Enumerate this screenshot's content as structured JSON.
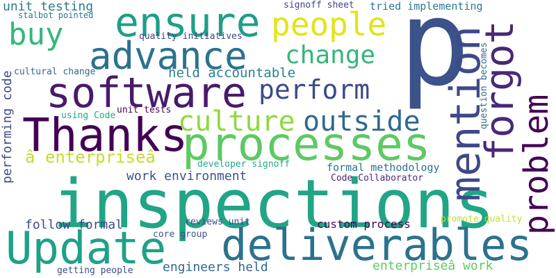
{
  "words": {
    "p": {
      "text": "p",
      "color": "#3b528b"
    },
    "inspections": {
      "text": "inspections",
      "color": "#21a585"
    },
    "processes": {
      "text": "processes",
      "color": "#5ec962"
    },
    "deliverables": {
      "text": "deliverables",
      "color": "#2c728e"
    },
    "update": {
      "text": "Update",
      "color": "#1fa187"
    },
    "thanks": {
      "text": "Thanks",
      "color": "#440154"
    },
    "software": {
      "text": "software",
      "color": "#481a6c"
    },
    "advance": {
      "text": "advance",
      "color": "#2c728e"
    },
    "ensure": {
      "text": "ensure",
      "color": "#1f9e89"
    },
    "mention": {
      "text": "mention",
      "color": "#3e4989"
    },
    "forgot": {
      "text": "forgot",
      "color": "#482878"
    },
    "problem": {
      "text": "problem",
      "color": "#440154"
    },
    "people": {
      "text": "people",
      "color": "#e3e418"
    },
    "buy": {
      "text": "buy",
      "color": "#35b779"
    },
    "change": {
      "text": "change",
      "color": "#35b779"
    },
    "perform": {
      "text": "perform",
      "color": "#3e4989"
    },
    "culture": {
      "text": "culture",
      "color": "#90d743"
    },
    "outside": {
      "text": "outside",
      "color": "#31688e"
    },
    "enterprise_a": {
      "text": "â enterpriseâ",
      "color": "#c2df23"
    },
    "performing_code": {
      "text": "performing code",
      "color": "#3e4989"
    },
    "unit_testing": {
      "text": "unit testing",
      "color": "#2a788e"
    },
    "stalbot_pointed": {
      "text": "stalbot pointed",
      "color": "#2a788e"
    },
    "quality_initiatives": {
      "text": "quality initiatives",
      "color": "#414487"
    },
    "cultural_change": {
      "text": "cultural change",
      "color": "#31688e"
    },
    "signoff_sheet": {
      "text": "signoff sheet",
      "color": "#414487"
    },
    "tried_implementing": {
      "text": "tried implementing",
      "color": "#2a788e"
    },
    "question_becomes": {
      "text": "question becomes",
      "color": "#31688e"
    },
    "held_accountable": {
      "text": "held accountable",
      "color": "#26828e"
    },
    "using_code": {
      "text": "using Code",
      "color": "#22a884"
    },
    "unit_tests": {
      "text": "unit tests",
      "color": "#440154"
    },
    "developer_signoff": {
      "text": "developer signoff",
      "color": "#22a884"
    },
    "formal_methodology": {
      "text": "formal methodology",
      "color": "#2c728e"
    },
    "work_environment": {
      "text": "work environment",
      "color": "#3b528b"
    },
    "code_collaborator": {
      "text": "Code Collaborator",
      "color": "#482878"
    },
    "follow_formal": {
      "text": "follow formal",
      "color": "#3e4989"
    },
    "reviews_unit": {
      "text": "reviews unit",
      "color": "#3e4989"
    },
    "core_group": {
      "text": "core group",
      "color": "#3b528b"
    },
    "custom_process": {
      "text": "custom process",
      "color": "#440154"
    },
    "promote_quality": {
      "text": "promote quality",
      "color": "#c2df23"
    },
    "engineers_held": {
      "text": "engineers held",
      "color": "#31688e"
    },
    "getting_people": {
      "text": "getting people",
      "color": "#3e4989"
    },
    "enterprise_work": {
      "text": "enterpriseâ work",
      "color": "#5ec962"
    }
  }
}
